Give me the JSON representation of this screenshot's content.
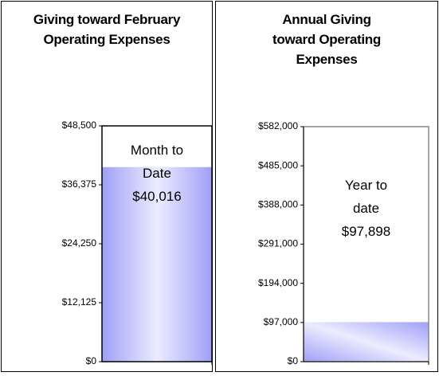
{
  "chart_data": [
    {
      "type": "bar",
      "title": "Giving toward February Operating Expenses",
      "categories": [
        null
      ],
      "values": [
        40016
      ],
      "value_labels": [
        "$40,016"
      ],
      "annotation": "Month to Date",
      "color": "#9f9ff7",
      "ylim": [
        0,
        48500
      ],
      "yticks": [
        {
          "value": 0,
          "label": "$0"
        },
        {
          "value": 12125,
          "label": "$12,125"
        },
        {
          "value": 24250,
          "label": "$24,250"
        },
        {
          "value": 36375,
          "label": "$36,375"
        },
        {
          "value": 48500,
          "label": "$48,500"
        }
      ]
    },
    {
      "type": "bar",
      "title": "Annual Giving toward Operating Expenses",
      "categories": [
        null
      ],
      "values": [
        97898
      ],
      "value_labels": [
        "$97,898"
      ],
      "annotation": "Year to date",
      "color": "#9f9ff7",
      "ylim": [
        0,
        582000
      ],
      "yticks": [
        {
          "value": 0,
          "label": "$0"
        },
        {
          "value": 97000,
          "label": "$97,000"
        },
        {
          "value": 194000,
          "label": "$194,000"
        },
        {
          "value": 291000,
          "label": "$291,000"
        },
        {
          "value": 388000,
          "label": "$388,000"
        },
        {
          "value": 485000,
          "label": "$485,000"
        },
        {
          "value": 582000,
          "label": "$582,000"
        }
      ]
    }
  ]
}
